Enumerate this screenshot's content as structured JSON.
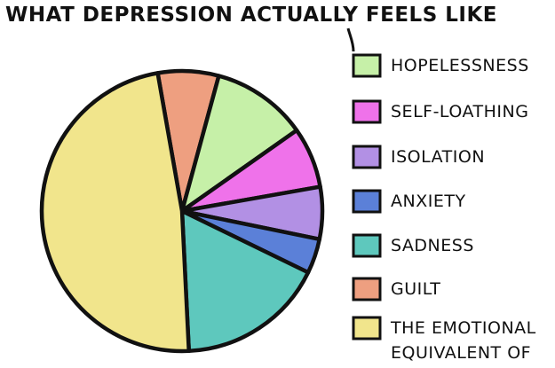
{
  "chart_data": {
    "type": "pie",
    "title": "WHAT DEPRESSION ACTUALLY FEELS LIKE",
    "categories": [
      "HOPELESSNESS",
      "SELF-LOATHING",
      "ISOLATION",
      "ANXIETY",
      "SADNESS",
      "GUILT",
      "THE EMOTIONAL EQUIVALENT OF"
    ],
    "values": [
      11,
      7,
      6,
      4,
      17,
      7,
      48
    ],
    "colors": [
      "#c6f0a8",
      "#ef72ea",
      "#b290e4",
      "#5b80d8",
      "#5ec8bd",
      "#ee9f80",
      "#f1e58c"
    ]
  }
}
